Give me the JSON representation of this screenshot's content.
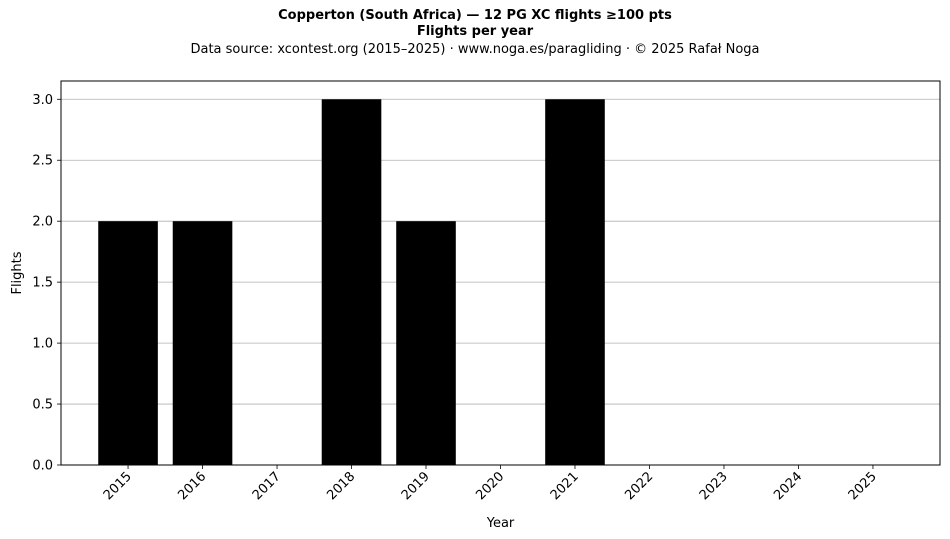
{
  "header": {
    "title": "Copperton (South Africa)  —  12 PG XC flights ≥100 pts",
    "subtitle": "Flights per year",
    "source": "Data source: xcontest.org (2015–2025)  ·  www.noga.es/paragliding  ·  © 2025 Rafał Noga"
  },
  "chart_data": {
    "type": "bar",
    "title": "Copperton (South Africa)  —  12 PG XC flights ≥100 pts",
    "subtitle": "Flights per year",
    "xlabel": "Year",
    "ylabel": "Flights",
    "categories": [
      "2015",
      "2016",
      "2017",
      "2018",
      "2019",
      "2020",
      "2021",
      "2022",
      "2023",
      "2024",
      "2025"
    ],
    "values": [
      2,
      2,
      0,
      3,
      2,
      0,
      3,
      0,
      0,
      0,
      0
    ],
    "ylim": [
      0,
      3.15
    ],
    "yticks": [
      "0.0",
      "0.5",
      "1.0",
      "1.5",
      "2.0",
      "2.5",
      "3.0"
    ],
    "grid": "horizontal",
    "bar_color": "#000000",
    "grid_color": "#b0b0b0"
  }
}
